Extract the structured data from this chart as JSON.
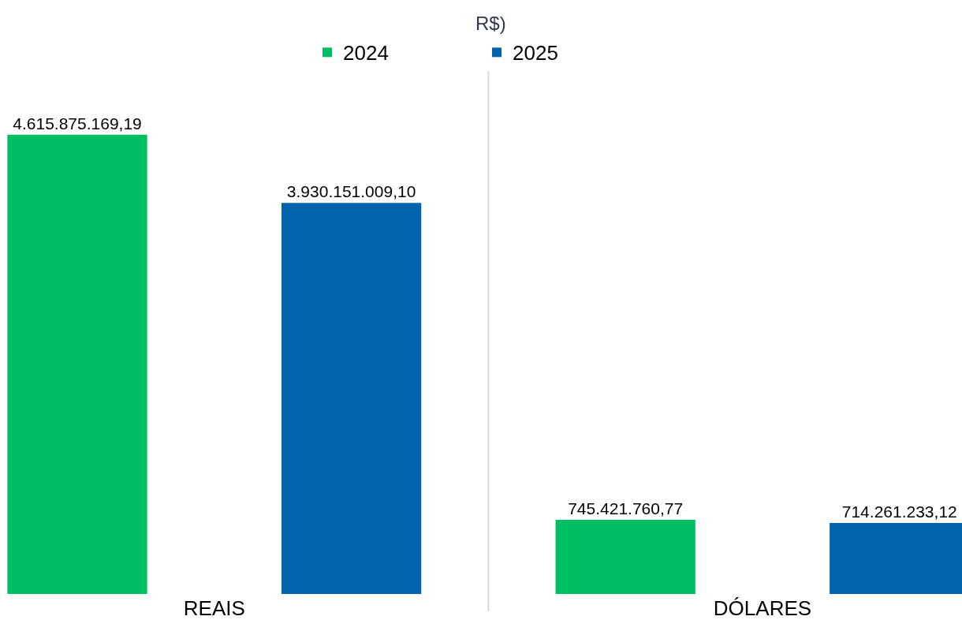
{
  "chart_data": {
    "type": "bar",
    "annotations": [
      "R$)"
    ],
    "categories": [
      "REAIS",
      "DÓLARES"
    ],
    "series": [
      {
        "name": "2024",
        "color": "#00bf63",
        "values": [
          4615875169.19,
          745421760.77
        ],
        "value_labels": [
          "4.615.875.169,19",
          "745.421.760,77"
        ]
      },
      {
        "name": "2025",
        "color": "#0063ad",
        "values": [
          3930151009.1,
          714261233.12
        ],
        "value_labels": [
          "3.930.151.009,10",
          "714.261.233,12"
        ]
      }
    ],
    "legend": "top",
    "grid": false,
    "tick_labels": "x"
  }
}
